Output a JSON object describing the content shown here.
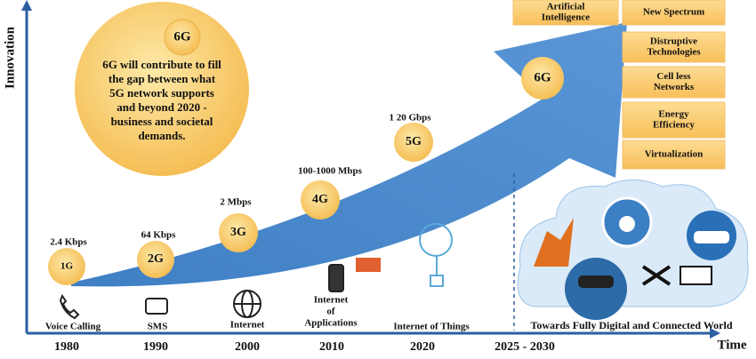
{
  "y_axis_label": "Innovation",
  "x_axis_label": "Time",
  "years": [
    "1980",
    "1990",
    "2000",
    "2010",
    "2020",
    "2025 - 2030"
  ],
  "generations": [
    {
      "label": "1G",
      "speed": "2.4 Kbps"
    },
    {
      "label": "2G",
      "speed": "64 Kbps"
    },
    {
      "label": "3G",
      "speed": "2 Mbps"
    },
    {
      "label": "4G",
      "speed": "100-1000 Mbps"
    },
    {
      "label": "5G",
      "speed": "1 20 Gbps"
    }
  ],
  "arrow_label": "6G",
  "callout": {
    "title": "6G",
    "lines": [
      "6G will contribute to fill",
      "the gap between what",
      "5G network supports",
      "and beyond 2020 -",
      "business and societal",
      "demands."
    ]
  },
  "applications": [
    [
      "Voice Calling"
    ],
    [
      "SMS"
    ],
    [
      "Internet"
    ],
    [
      "Internet",
      "of",
      "Applications"
    ],
    [
      "Internet of Things"
    ],
    [
      "Towards Fully Digital and Connected World"
    ]
  ],
  "features": [
    [
      "Artificial",
      "Intelligence"
    ],
    [
      "New Spectrum"
    ],
    [
      "Distruptive",
      "Technologies"
    ],
    [
      "Cell less",
      "Networks"
    ],
    [
      "Energy",
      "Efficiency"
    ],
    [
      "Virtualization"
    ]
  ]
}
